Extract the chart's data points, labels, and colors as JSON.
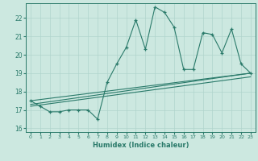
{
  "xlabel": "Humidex (Indice chaleur)",
  "ylabel": "",
  "bg_color": "#cce8e0",
  "line_color": "#2a7a6a",
  "grid_color": "#b0d4cc",
  "xlim": [
    -0.5,
    23.5
  ],
  "ylim": [
    15.8,
    22.8
  ],
  "xticks": [
    0,
    1,
    2,
    3,
    4,
    5,
    6,
    7,
    8,
    9,
    10,
    11,
    12,
    13,
    14,
    15,
    16,
    17,
    18,
    19,
    20,
    21,
    22,
    23
  ],
  "yticks": [
    16,
    17,
    18,
    19,
    20,
    21,
    22
  ],
  "series": [
    [
      0,
      17.5
    ],
    [
      1,
      17.2
    ],
    [
      2,
      16.9
    ],
    [
      3,
      16.9
    ],
    [
      4,
      17.0
    ],
    [
      5,
      17.0
    ],
    [
      6,
      17.0
    ],
    [
      7,
      16.5
    ],
    [
      8,
      18.5
    ],
    [
      9,
      19.5
    ],
    [
      10,
      20.4
    ],
    [
      11,
      21.9
    ],
    [
      12,
      20.3
    ],
    [
      13,
      22.6
    ],
    [
      14,
      22.3
    ],
    [
      15,
      21.5
    ],
    [
      16,
      19.2
    ],
    [
      17,
      19.2
    ],
    [
      18,
      21.2
    ],
    [
      19,
      21.1
    ],
    [
      20,
      20.1
    ],
    [
      21,
      21.4
    ],
    [
      22,
      19.5
    ],
    [
      23,
      19.0
    ]
  ],
  "trend_lines": [
    [
      [
        0,
        17.5
      ],
      [
        23,
        19.0
      ]
    ],
    [
      [
        0,
        17.3
      ],
      [
        23,
        19.0
      ]
    ],
    [
      [
        0,
        17.2
      ],
      [
        23,
        18.8
      ]
    ]
  ]
}
